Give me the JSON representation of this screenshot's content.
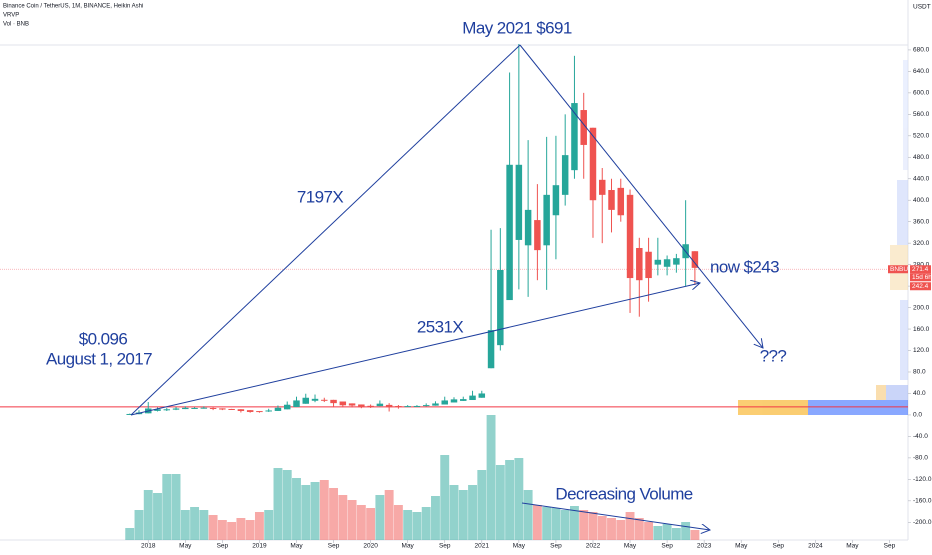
{
  "chart_data": {
    "type": "candlestick",
    "title": "Binance Coin / TetherUS, 1M, BINANCE, Heikin Ashi",
    "indicators": [
      "VRVP",
      "Vol · BNB"
    ],
    "y_axis_unit": "USDT",
    "up_color": "#26a69a",
    "down_color": "#ef5350",
    "x": [
      "2017-11",
      "2017-12",
      "2018-01",
      "2018-02",
      "2018-03",
      "2018-04",
      "2018-05",
      "2018-06",
      "2018-07",
      "2018-08",
      "2018-09",
      "2018-10",
      "2018-11",
      "2018-12",
      "2019-01",
      "2019-02",
      "2019-03",
      "2019-04",
      "2019-05",
      "2019-06",
      "2019-07",
      "2019-08",
      "2019-09",
      "2019-10",
      "2019-11",
      "2019-12",
      "2020-01",
      "2020-02",
      "2020-03",
      "2020-04",
      "2020-05",
      "2020-06",
      "2020-07",
      "2020-08",
      "2020-09",
      "2020-10",
      "2020-11",
      "2020-12",
      "2021-01",
      "2021-02",
      "2021-03",
      "2021-04",
      "2021-05",
      "2021-06",
      "2021-07",
      "2021-08",
      "2021-09",
      "2021-10",
      "2021-11",
      "2021-12",
      "2022-01",
      "2022-02",
      "2022-03",
      "2022-04",
      "2022-05",
      "2022-06",
      "2022-07",
      "2022-08",
      "2022-09",
      "2022-10",
      "2022-11",
      "2022-12"
    ],
    "open": [
      1.0,
      1.4,
      3.0,
      7.5,
      9.1,
      9.8,
      10.9,
      12.1,
      12.5,
      13,
      12.2,
      11.1,
      10.6,
      8.9,
      7.2,
      6.5,
      7.4,
      10.4,
      14.7,
      20.8,
      26.4,
      28.2,
      28.1,
      25,
      21.5,
      19.5,
      17,
      16.4,
      18.7,
      16.6,
      15.7,
      16.1,
      16.4,
      17.3,
      19.4,
      23.2,
      26.1,
      27.8,
      32,
      87,
      130,
      214,
      326,
      316,
      363,
      316,
      372,
      410,
      456,
      568,
      535,
      438,
      419,
      423,
      410,
      311,
      304,
      280,
      276,
      280,
      292,
      305
    ],
    "high": [
      2.5,
      8.8,
      24,
      14,
      13,
      15,
      16,
      14.6,
      16,
      14,
      12.3,
      11.3,
      10.7,
      8.9,
      7.2,
      11.5,
      17.6,
      25,
      34,
      39.5,
      38,
      32,
      28.1,
      25,
      21.5,
      19.5,
      19.5,
      27,
      22,
      18.5,
      18.3,
      18.3,
      21.5,
      25.4,
      34,
      33,
      34,
      45,
      45,
      345,
      348,
      638,
      691,
      512,
      430,
      518,
      520,
      560,
      669,
      600,
      535,
      460,
      440,
      440,
      420,
      330,
      330,
      330,
      297,
      300,
      400,
      305
    ],
    "low": [
      0.9,
      1.3,
      3,
      6.5,
      7.3,
      9,
      10.9,
      11,
      11.6,
      9,
      9,
      9.2,
      4.5,
      4.2,
      4.2,
      5.6,
      7.4,
      10.4,
      14.7,
      20.8,
      23.7,
      24,
      14.5,
      14.2,
      14,
      12.5,
      13,
      16.3,
      6.4,
      11.7,
      15.1,
      15.6,
      15.9,
      17.3,
      19.4,
      23.2,
      26.1,
      27.8,
      32,
      87,
      120,
      214,
      234,
      220,
      251,
      233,
      290,
      390,
      440,
      440,
      330,
      320,
      340,
      360,
      190,
      183,
      211,
      260,
      260,
      265,
      240,
      242
    ],
    "close": [
      1.8,
      4.5,
      12,
      10.6,
      10.5,
      12,
      13.3,
      13,
      13.5,
      11.5,
      10.1,
      10,
      7.3,
      5.5,
      5.8,
      8.3,
      13.3,
      19,
      27,
      32,
      30,
      28,
      22,
      18,
      17.5,
      14.5,
      15.8,
      21,
      14.5,
      14.9,
      16.5,
      16.7,
      18.3,
      21.4,
      27,
      29,
      29.5,
      36,
      40,
      158,
      270,
      466,
      466,
      382,
      307,
      410,
      428,
      484,
      581,
      503,
      400,
      410,
      382,
      372,
      255,
      251,
      255,
      289,
      290,
      292,
      318,
      274
    ],
    "volume": [
      12,
      30,
      50,
      47,
      66,
      66,
      30,
      33,
      30,
      25,
      20,
      18,
      22,
      20,
      28,
      30,
      72,
      70,
      62,
      55,
      58,
      60,
      52,
      45,
      40,
      35,
      32,
      45,
      50,
      35,
      30,
      28,
      33,
      44,
      85,
      55,
      50,
      55,
      70,
      125,
      75,
      80,
      82,
      50,
      35,
      33,
      32,
      30,
      34,
      30,
      28,
      24,
      22,
      20,
      28,
      22,
      18,
      14,
      16,
      12,
      18,
      10
    ],
    "xlim": [
      "2016-09",
      "2024-11"
    ],
    "xticks": [
      {
        "value": "2018-01",
        "label": "2018"
      },
      {
        "value": "2018-05",
        "label": "May"
      },
      {
        "value": "2018-09",
        "label": "Sep"
      },
      {
        "value": "2019-01",
        "label": "2019"
      },
      {
        "value": "2019-05",
        "label": "May"
      },
      {
        "value": "2019-09",
        "label": "Sep"
      },
      {
        "value": "2020-01",
        "label": "2020"
      },
      {
        "value": "2020-05",
        "label": "May"
      },
      {
        "value": "2020-09",
        "label": "Sep"
      },
      {
        "value": "2021-01",
        "label": "2021"
      },
      {
        "value": "2021-05",
        "label": "May"
      },
      {
        "value": "2021-09",
        "label": "Sep"
      },
      {
        "value": "2022-01",
        "label": "2022"
      },
      {
        "value": "2022-05",
        "label": "May"
      },
      {
        "value": "2022-09",
        "label": "Sep"
      },
      {
        "value": "2023-01",
        "label": "2023"
      },
      {
        "value": "2023-05",
        "label": "May"
      },
      {
        "value": "2023-09",
        "label": "Sep"
      },
      {
        "value": "2024-01",
        "label": "2024"
      },
      {
        "value": "2024-05",
        "label": "May"
      },
      {
        "value": "2024-09",
        "label": "Sep"
      }
    ],
    "ylim": [
      -233,
      773
    ],
    "yticks": [
      {
        "value": -200,
        "label": "-200.0"
      },
      {
        "value": -160,
        "label": "-160.0"
      },
      {
        "value": -120,
        "label": "-120.0"
      },
      {
        "value": -80,
        "label": "-80.0"
      },
      {
        "value": -40,
        "label": "-40.0"
      },
      {
        "value": 0,
        "label": "0.0"
      },
      {
        "value": 40,
        "label": "40.0"
      },
      {
        "value": 80,
        "label": "80.0"
      },
      {
        "value": 120,
        "label": "120.0"
      },
      {
        "value": 160,
        "label": "160.0"
      },
      {
        "value": 200,
        "label": "200.0"
      },
      {
        "value": 240,
        "label": "240.0"
      },
      {
        "value": 280,
        "label": "280.0"
      },
      {
        "value": 320,
        "label": "320.0"
      },
      {
        "value": 360,
        "label": "360.0"
      },
      {
        "value": 400,
        "label": "400.0"
      },
      {
        "value": 440,
        "label": "440.0"
      },
      {
        "value": 480,
        "label": "480.0"
      },
      {
        "value": 520,
        "label": "520.0"
      },
      {
        "value": 560,
        "label": "560.0"
      },
      {
        "value": 600,
        "label": "600.0"
      },
      {
        "value": 640,
        "label": "640.0"
      },
      {
        "value": 680,
        "label": "680.0"
      }
    ],
    "y2lim": [
      0,
      140
    ],
    "grid": false,
    "hline": {
      "value": 15,
      "color": "#f23645"
    },
    "symbol": "BNBUSDT",
    "last_price": 271.4,
    "countdown": "15d 6h",
    "low_price": 242.4,
    "annotations": [
      "May 2021 $691",
      "7197X",
      "$0.096",
      "August 1, 2017",
      "2531X",
      "now $243",
      "???",
      "Decreasing Volume"
    ]
  }
}
